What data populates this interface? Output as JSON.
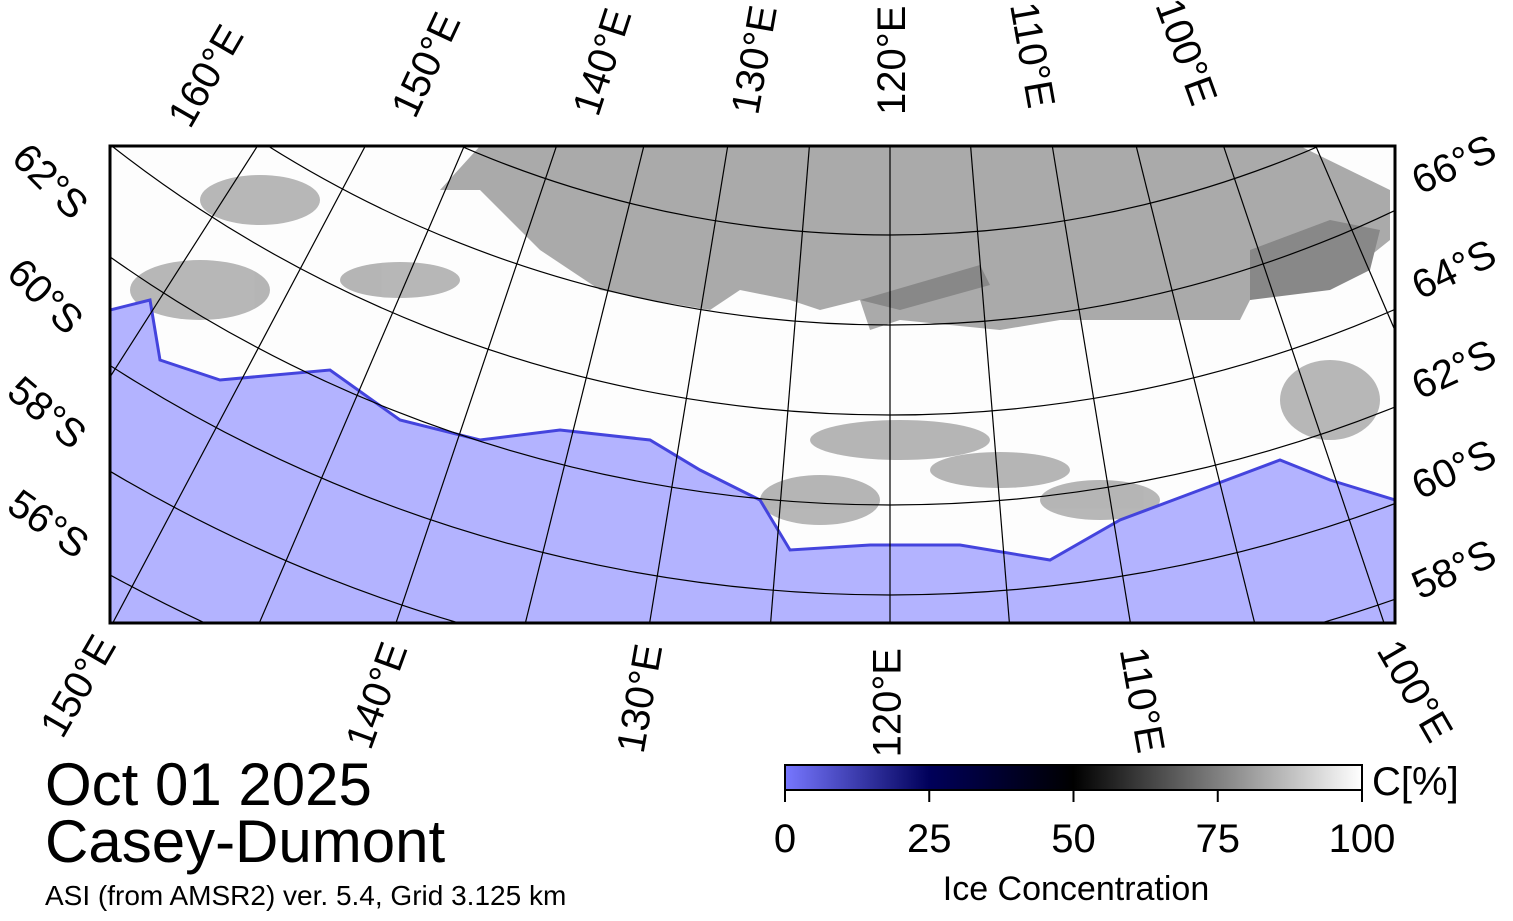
{
  "map": {
    "top_labels": [
      "160°E",
      "150°E",
      "140°E",
      "130°E",
      "120°E",
      "110°E",
      "100°E"
    ],
    "bottom_labels": [
      "150°E",
      "140°E",
      "130°E",
      "120°E",
      "110°E",
      "100°E"
    ],
    "left_labels": [
      "62°S",
      "60°S",
      "58°S",
      "56°S"
    ],
    "right_labels": [
      "66°S",
      "64°S",
      "62°S",
      "60°S",
      "58°S"
    ]
  },
  "title": {
    "date": "Oct 01 2025",
    "region": "Casey-Dumont",
    "subtitle": "ASI (from AMSR2) ver. 5.4,  Grid 3.125 km"
  },
  "colorbar": {
    "label": "C[%]",
    "title": "Ice Concentration",
    "lim": [
      0,
      100
    ],
    "ticks": [
      0,
      25,
      50,
      75,
      100
    ]
  }
}
